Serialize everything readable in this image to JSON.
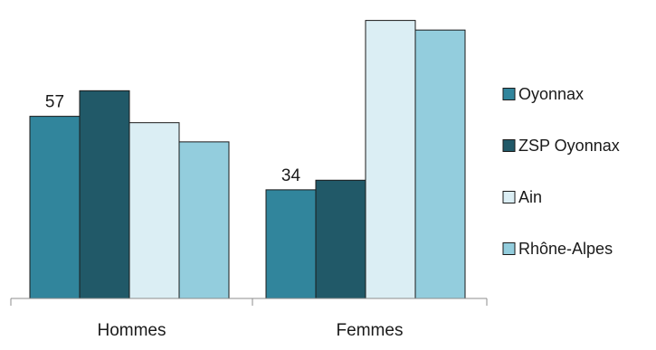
{
  "chart_data": {
    "type": "bar",
    "categories": [
      "Hommes",
      "Femmes"
    ],
    "series": [
      {
        "name": "Oyonnax",
        "values": [
          57,
          34
        ],
        "color": "#31859c"
      },
      {
        "name": "ZSP Oyonnax",
        "values": [
          65,
          37
        ],
        "color": "#215968"
      },
      {
        "name": "Ain",
        "values": [
          55,
          87
        ],
        "color": "#dbeef4"
      },
      {
        "name": "Rhône-Alpes",
        "values": [
          49,
          84
        ],
        "color": "#93cddd"
      }
    ],
    "data_labels": [
      {
        "series": "Oyonnax",
        "category": "Hommes",
        "text": "57"
      },
      {
        "series": "Oyonnax",
        "category": "Femmes",
        "text": "34"
      }
    ],
    "ylim": [
      0,
      90
    ],
    "grid": false,
    "legend_position": "right"
  }
}
